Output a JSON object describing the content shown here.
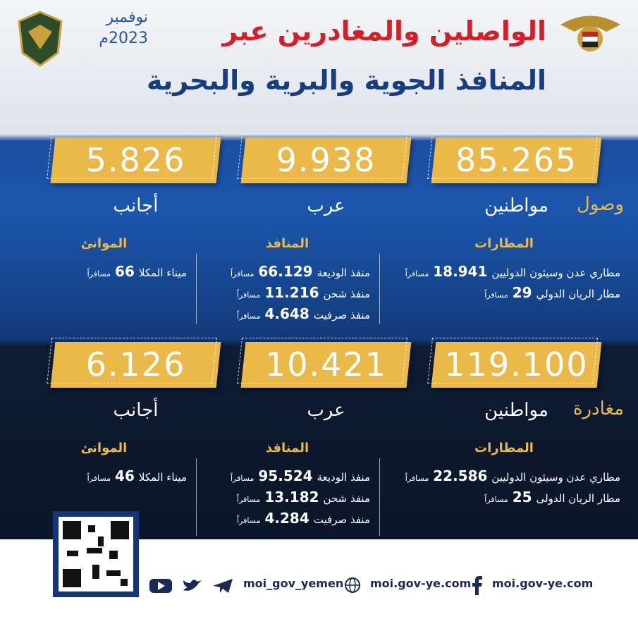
{
  "header": {
    "title_line1": "الواصلين والمغادرين عبر",
    "title_line2": "المنافذ الجوية والبرية والبحرية",
    "month": "نوفمبر",
    "year": "2023م"
  },
  "unit": "مسافراً",
  "sections": [
    {
      "label": "وصول",
      "totals": [
        {
          "value": "85.265",
          "label": "مواطنين"
        },
        {
          "value": "9.938",
          "label": "عرب"
        },
        {
          "value": "5.826",
          "label": "أجانب"
        }
      ],
      "groups": [
        {
          "title": "المطارات",
          "items": [
            {
              "name": "مطاري عدن وسيئون الدوليين",
              "value": "18.941"
            },
            {
              "name": "مطار الريان الدولي",
              "value": "29"
            }
          ]
        },
        {
          "title": "المنافذ",
          "items": [
            {
              "name": "منفذ الوديعة",
              "value": "66.129"
            },
            {
              "name": "منفذ شحن",
              "value": "11.216"
            },
            {
              "name": "منفذ صرفيت",
              "value": "4.648"
            }
          ]
        },
        {
          "title": "الموانئ",
          "items": [
            {
              "name": "ميناء المكلا",
              "value": "66"
            }
          ]
        }
      ]
    },
    {
      "label": "مغادرة",
      "totals": [
        {
          "value": "119.100",
          "label": "مواطنين"
        },
        {
          "value": "10.421",
          "label": "عرب"
        },
        {
          "value": "6.126",
          "label": "أجانب"
        }
      ],
      "groups": [
        {
          "title": "المطارات",
          "items": [
            {
              "name": "مطاري عدن وسيئون الدوليين",
              "value": "22.586"
            },
            {
              "name": "مطار الريان الدولى",
              "value": "25"
            }
          ]
        },
        {
          "title": "المنافذ",
          "items": [
            {
              "name": "منفذ الوديعة",
              "value": "95.524"
            },
            {
              "name": "منفذ شحن",
              "value": "13.182"
            },
            {
              "name": "منفذ صرفيت",
              "value": "4.284"
            }
          ]
        },
        {
          "title": "الموانئ",
          "items": [
            {
              "name": "ميناء المكلا",
              "value": "46"
            }
          ]
        }
      ]
    }
  ],
  "footer": {
    "handle": "moi_gov_yemen",
    "website": "moi.gov-ye.com",
    "facebook": "moi.gov-ye.com"
  }
}
